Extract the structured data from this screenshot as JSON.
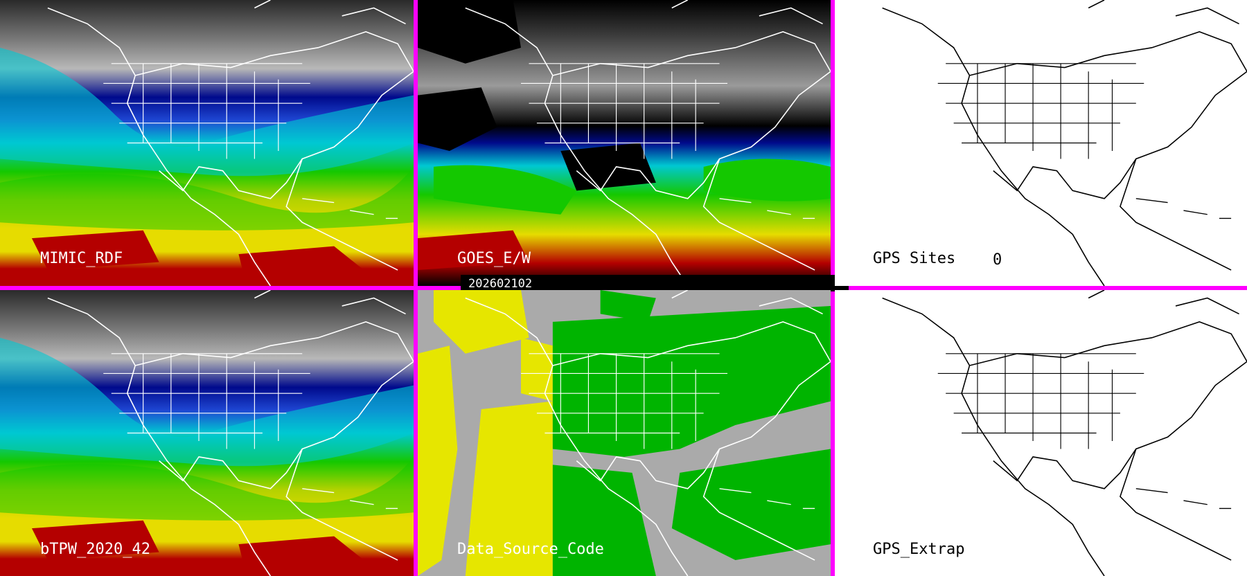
{
  "panels": {
    "mimic": {
      "label": "MIMIC_RDF"
    },
    "goes": {
      "label": "GOES_E/W"
    },
    "gps_sites": {
      "label": "GPS Sites",
      "count": "0"
    },
    "btpw": {
      "label": "bTPW_2020_42"
    },
    "data_source": {
      "label": "Data_Source_Code"
    },
    "gps_extrap": {
      "label": "GPS_Extrap"
    }
  },
  "timestamp": "202602102",
  "colors": {
    "border": "#ff00ff",
    "tpw_gray_dark": "#2a2a2a",
    "tpw_gray_light": "#c8c8c8",
    "tpw_navy": "#000a8c",
    "tpw_blue": "#1e46d2",
    "tpw_cyan": "#00c8d2",
    "tpw_green": "#14c800",
    "tpw_yellow": "#e6dc00",
    "tpw_red": "#b40000",
    "source_gray": "#aaaaaa",
    "source_yellow": "#e6e600",
    "source_green": "#00b400"
  }
}
